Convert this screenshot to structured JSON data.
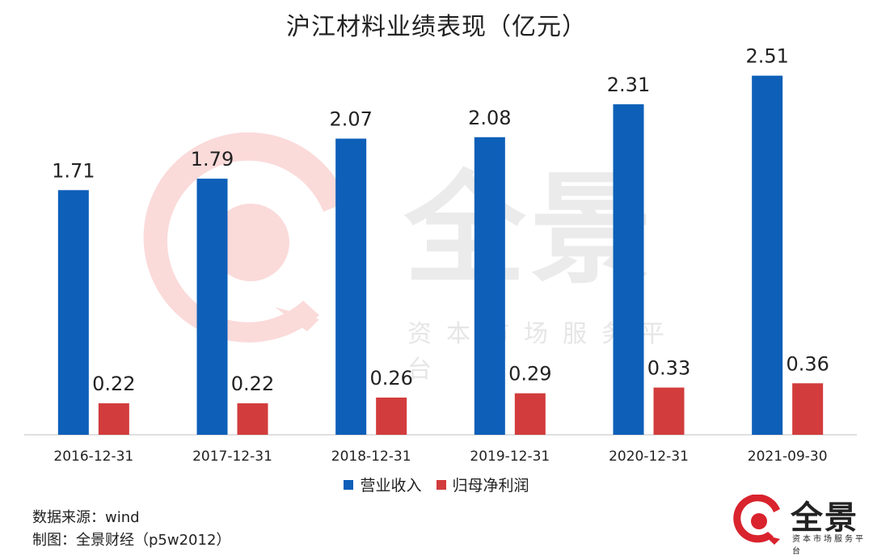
{
  "chart_data": {
    "type": "bar",
    "title": "沪江材料业绩表现（亿元）",
    "categories": [
      "2016-12-31",
      "2017-12-31",
      "2018-12-31",
      "2019-12-31",
      "2020-12-31",
      "2021-09-30"
    ],
    "series": [
      {
        "name": "营业收入",
        "values": [
          1.71,
          1.79,
          2.07,
          2.08,
          2.31,
          2.51
        ],
        "value_labels": [
          "1.71",
          "1.79",
          "2.07",
          "2.08",
          "2.31",
          "2.51"
        ]
      },
      {
        "name": "归母净利润",
        "values": [
          0.22,
          0.22,
          0.26,
          0.29,
          0.33,
          0.36
        ],
        "value_labels": [
          "0.22",
          "0.22",
          "0.26",
          "0.29",
          "0.33",
          "0.36"
        ]
      }
    ],
    "xlabel": "",
    "ylabel": "",
    "ylim": [
      0,
      2.7
    ],
    "grid": false,
    "legend_position": "bottom-center"
  },
  "colors": {
    "revenue": "#0d5fb8",
    "profit": "#d23c3c",
    "watermark": "#f7c9c9"
  },
  "watermark": {
    "main": "全景",
    "sub": "资本市场服务平台"
  },
  "footer": {
    "source": "数据来源：wind",
    "credit": "制图：全景财经（p5w2012）"
  },
  "logo": {
    "name": "全景",
    "sub": "资本市场服务平台",
    "icon": "quanjing-logo-icon"
  }
}
